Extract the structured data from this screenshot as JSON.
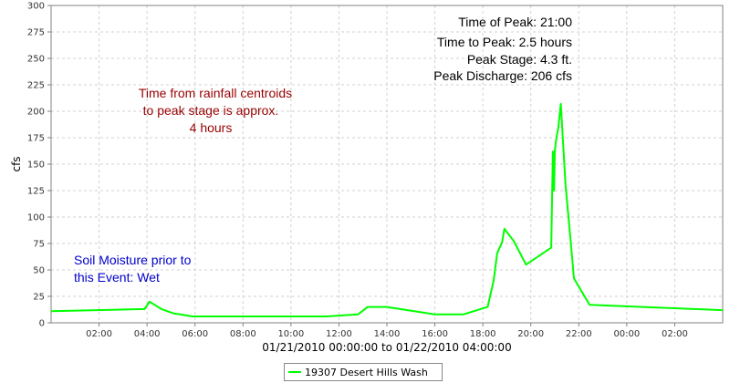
{
  "chart_data": {
    "type": "line",
    "xlabel": "01/21/2010 00:00:00 to 01/22/2010 04:00:00",
    "ylabel": "cfs",
    "ylim": [
      0,
      300
    ],
    "xlim_hours": [
      0,
      28
    ],
    "grid": true,
    "legend_position": "bottom-center",
    "x_ticks": [
      {
        "hours": 2,
        "label": "02:00"
      },
      {
        "hours": 4,
        "label": "04:00"
      },
      {
        "hours": 6,
        "label": "06:00"
      },
      {
        "hours": 8,
        "label": "08:00"
      },
      {
        "hours": 10,
        "label": "10:00"
      },
      {
        "hours": 12,
        "label": "12:00"
      },
      {
        "hours": 14,
        "label": "14:00"
      },
      {
        "hours": 16,
        "label": "16:00"
      },
      {
        "hours": 18,
        "label": "18:00"
      },
      {
        "hours": 20,
        "label": "20:00"
      },
      {
        "hours": 22,
        "label": "22:00"
      },
      {
        "hours": 24,
        "label": "00:00"
      },
      {
        "hours": 26,
        "label": "02:00"
      }
    ],
    "y_ticks": [
      0,
      25,
      50,
      75,
      100,
      125,
      150,
      175,
      200,
      225,
      250,
      275,
      300
    ],
    "series": [
      {
        "name": "19307 Desert Hills Wash",
        "color": "#00ff00",
        "points": [
          [
            0.0,
            11
          ],
          [
            3.9,
            13
          ],
          [
            4.1,
            20
          ],
          [
            4.6,
            13
          ],
          [
            5.1,
            9
          ],
          [
            5.9,
            6
          ],
          [
            11.5,
            6
          ],
          [
            12.8,
            8
          ],
          [
            13.2,
            15
          ],
          [
            14.0,
            15
          ],
          [
            16.0,
            8
          ],
          [
            17.2,
            8
          ],
          [
            18.2,
            15
          ],
          [
            18.45,
            40
          ],
          [
            18.6,
            66
          ],
          [
            18.8,
            76
          ],
          [
            18.9,
            89
          ],
          [
            19.3,
            77
          ],
          [
            19.8,
            55
          ],
          [
            20.85,
            71
          ],
          [
            20.92,
            162
          ],
          [
            20.97,
            125
          ],
          [
            21.0,
            162
          ],
          [
            21.05,
            172
          ],
          [
            21.15,
            185
          ],
          [
            21.25,
            207
          ],
          [
            21.45,
            130
          ],
          [
            21.65,
            80
          ],
          [
            21.8,
            42
          ],
          [
            22.45,
            17
          ],
          [
            28.0,
            12
          ]
        ]
      }
    ]
  },
  "annotations": {
    "peak_lines": [
      "Time of Peak: 21:00",
      "Time to Peak: 2.5 hours",
      "Peak Stage: 4.3 ft.",
      "Peak Discharge: 206 cfs"
    ],
    "centroid_lines": [
      "Time from rainfall centroids",
      "to peak stage is approx.",
      "4 hours"
    ],
    "soil_lines": [
      "Soil Moisture prior to",
      "this Event: Wet"
    ],
    "colors": {
      "peak": "#000000",
      "centroid": "#990000",
      "soil": "#0000cc"
    }
  }
}
